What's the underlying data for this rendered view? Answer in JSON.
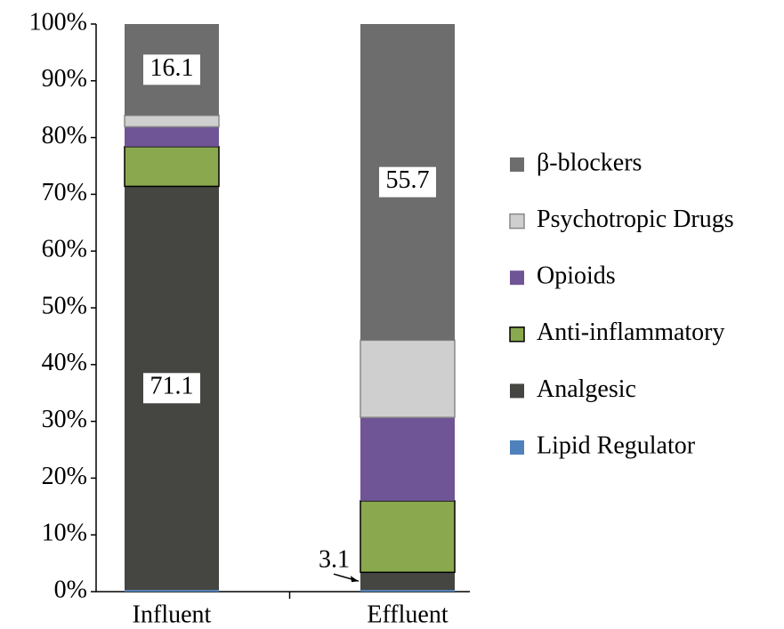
{
  "chart_data": {
    "type": "stacked_bar",
    "categories": [
      "Influent",
      "Effluent"
    ],
    "series": [
      {
        "name": "Lipid Regulator",
        "color": "#4f81bd",
        "values": [
          0.3,
          0.3
        ]
      },
      {
        "name": "Analgesic",
        "color": "#454641",
        "values": [
          71.1,
          3.1
        ],
        "value_labels": [
          "71.1",
          "3.1"
        ]
      },
      {
        "name": "Anti-inflammatory",
        "color": "#8aa84e",
        "values": [
          7.0,
          12.6
        ]
      },
      {
        "name": "Opioids",
        "color": "#6f5496",
        "values": [
          3.5,
          14.7
        ]
      },
      {
        "name": "Psychotropic Drugs",
        "color": "#cfcfcf",
        "values": [
          2.0,
          13.6
        ]
      },
      {
        "name": "β-blockers",
        "color": "#6d6d6d",
        "values": [
          16.1,
          55.7
        ],
        "value_labels": [
          "16.1",
          "55.7"
        ]
      }
    ],
    "ylim": [
      0,
      100
    ],
    "yticks": [
      {
        "value": 0,
        "label": "0%"
      },
      {
        "value": 10,
        "label": "10%"
      },
      {
        "value": 20,
        "label": "20%"
      },
      {
        "value": 30,
        "label": "30%"
      },
      {
        "value": 40,
        "label": "40%"
      },
      {
        "value": 50,
        "label": "50%"
      },
      {
        "value": 60,
        "label": "60%"
      },
      {
        "value": 70,
        "label": "70%"
      },
      {
        "value": 80,
        "label": "80%"
      },
      {
        "value": 90,
        "label": "90%"
      },
      {
        "value": 100,
        "label": "100%"
      }
    ]
  }
}
